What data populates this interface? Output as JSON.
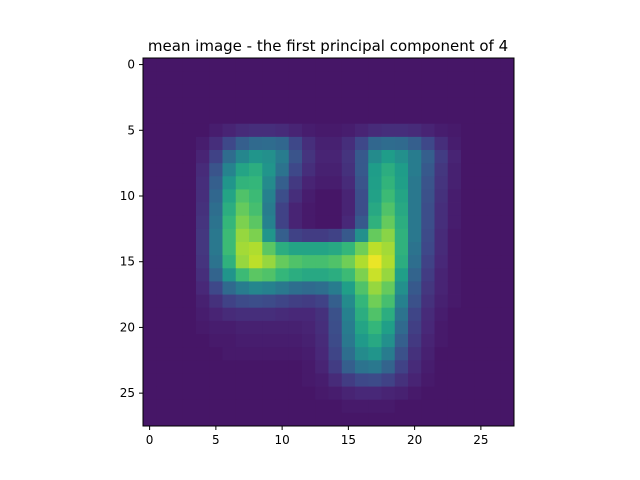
{
  "chart_data": {
    "type": "heatmap",
    "title": "mean image - the first principal component of 4",
    "xlabel": "",
    "ylabel": "",
    "rows": 28,
    "cols": 28,
    "xlim": [
      -0.5,
      27.5
    ],
    "ylim": [
      27.5,
      -0.5
    ],
    "xticks": [
      0,
      5,
      10,
      15,
      20,
      25
    ],
    "yticks": [
      0,
      5,
      10,
      15,
      20,
      25
    ],
    "colormap": "viridis",
    "colormap_stops": [
      "#440154",
      "#482878",
      "#3e4989",
      "#31688e",
      "#26828e",
      "#1f9e89",
      "#35b779",
      "#6ece58",
      "#b5de2b",
      "#fde725"
    ],
    "value_range": [
      0,
      1
    ],
    "grid": false,
    "values": [
      [
        0.06,
        0.06,
        0.06,
        0.06,
        0.06,
        0.06,
        0.06,
        0.06,
        0.06,
        0.06,
        0.06,
        0.06,
        0.06,
        0.06,
        0.06,
        0.06,
        0.06,
        0.06,
        0.06,
        0.06,
        0.06,
        0.06,
        0.06,
        0.06,
        0.06,
        0.06,
        0.06,
        0.06
      ],
      [
        0.06,
        0.06,
        0.06,
        0.06,
        0.06,
        0.06,
        0.06,
        0.06,
        0.06,
        0.06,
        0.06,
        0.06,
        0.06,
        0.06,
        0.06,
        0.06,
        0.06,
        0.06,
        0.06,
        0.06,
        0.06,
        0.06,
        0.06,
        0.06,
        0.06,
        0.06,
        0.06,
        0.06
      ],
      [
        0.06,
        0.06,
        0.06,
        0.06,
        0.06,
        0.06,
        0.06,
        0.06,
        0.06,
        0.06,
        0.06,
        0.06,
        0.06,
        0.06,
        0.06,
        0.06,
        0.06,
        0.06,
        0.06,
        0.06,
        0.06,
        0.06,
        0.06,
        0.06,
        0.06,
        0.06,
        0.06,
        0.06
      ],
      [
        0.06,
        0.06,
        0.06,
        0.06,
        0.06,
        0.06,
        0.06,
        0.06,
        0.06,
        0.06,
        0.06,
        0.06,
        0.06,
        0.06,
        0.06,
        0.06,
        0.06,
        0.06,
        0.06,
        0.06,
        0.06,
        0.06,
        0.06,
        0.06,
        0.06,
        0.06,
        0.06,
        0.06
      ],
      [
        0.06,
        0.06,
        0.06,
        0.06,
        0.06,
        0.06,
        0.06,
        0.06,
        0.06,
        0.06,
        0.06,
        0.06,
        0.06,
        0.06,
        0.06,
        0.06,
        0.06,
        0.06,
        0.06,
        0.06,
        0.06,
        0.06,
        0.06,
        0.06,
        0.06,
        0.06,
        0.06,
        0.06
      ],
      [
        0.06,
        0.06,
        0.06,
        0.06,
        0.06,
        0.08,
        0.1,
        0.12,
        0.13,
        0.13,
        0.12,
        0.1,
        0.08,
        0.07,
        0.07,
        0.08,
        0.1,
        0.12,
        0.13,
        0.13,
        0.12,
        0.1,
        0.08,
        0.07,
        0.06,
        0.06,
        0.06,
        0.06
      ],
      [
        0.06,
        0.06,
        0.06,
        0.06,
        0.08,
        0.13,
        0.22,
        0.3,
        0.34,
        0.35,
        0.33,
        0.22,
        0.13,
        0.09,
        0.09,
        0.13,
        0.22,
        0.33,
        0.35,
        0.34,
        0.3,
        0.22,
        0.13,
        0.08,
        0.06,
        0.06,
        0.06,
        0.06
      ],
      [
        0.06,
        0.06,
        0.06,
        0.06,
        0.1,
        0.2,
        0.35,
        0.46,
        0.52,
        0.5,
        0.42,
        0.26,
        0.15,
        0.1,
        0.1,
        0.15,
        0.28,
        0.48,
        0.55,
        0.5,
        0.42,
        0.3,
        0.18,
        0.1,
        0.06,
        0.06,
        0.06,
        0.06
      ],
      [
        0.06,
        0.06,
        0.06,
        0.06,
        0.12,
        0.26,
        0.45,
        0.58,
        0.62,
        0.52,
        0.38,
        0.22,
        0.13,
        0.09,
        0.09,
        0.14,
        0.28,
        0.55,
        0.62,
        0.55,
        0.42,
        0.28,
        0.16,
        0.09,
        0.06,
        0.06,
        0.06,
        0.06
      ],
      [
        0.06,
        0.06,
        0.06,
        0.06,
        0.13,
        0.3,
        0.52,
        0.65,
        0.66,
        0.48,
        0.3,
        0.17,
        0.1,
        0.08,
        0.08,
        0.12,
        0.26,
        0.56,
        0.65,
        0.56,
        0.4,
        0.26,
        0.15,
        0.09,
        0.06,
        0.06,
        0.06,
        0.06
      ],
      [
        0.06,
        0.06,
        0.06,
        0.06,
        0.13,
        0.33,
        0.58,
        0.72,
        0.68,
        0.44,
        0.24,
        0.13,
        0.08,
        0.06,
        0.06,
        0.1,
        0.24,
        0.57,
        0.68,
        0.58,
        0.4,
        0.25,
        0.14,
        0.08,
        0.06,
        0.06,
        0.06,
        0.06
      ],
      [
        0.06,
        0.06,
        0.06,
        0.06,
        0.14,
        0.36,
        0.62,
        0.76,
        0.7,
        0.42,
        0.2,
        0.1,
        0.07,
        0.06,
        0.06,
        0.1,
        0.24,
        0.6,
        0.72,
        0.6,
        0.4,
        0.24,
        0.13,
        0.08,
        0.06,
        0.06,
        0.06,
        0.06
      ],
      [
        0.06,
        0.06,
        0.06,
        0.06,
        0.15,
        0.38,
        0.66,
        0.8,
        0.74,
        0.44,
        0.2,
        0.1,
        0.07,
        0.06,
        0.06,
        0.11,
        0.28,
        0.64,
        0.76,
        0.62,
        0.4,
        0.24,
        0.13,
        0.08,
        0.06,
        0.06,
        0.06,
        0.06
      ],
      [
        0.06,
        0.06,
        0.06,
        0.06,
        0.16,
        0.4,
        0.68,
        0.84,
        0.8,
        0.52,
        0.3,
        0.2,
        0.18,
        0.18,
        0.2,
        0.28,
        0.5,
        0.76,
        0.82,
        0.64,
        0.4,
        0.23,
        0.12,
        0.07,
        0.06,
        0.06,
        0.06,
        0.06
      ],
      [
        0.06,
        0.06,
        0.06,
        0.06,
        0.16,
        0.4,
        0.68,
        0.86,
        0.88,
        0.74,
        0.62,
        0.58,
        0.58,
        0.58,
        0.6,
        0.66,
        0.78,
        0.9,
        0.86,
        0.64,
        0.38,
        0.22,
        0.12,
        0.07,
        0.06,
        0.06,
        0.06,
        0.06
      ],
      [
        0.06,
        0.06,
        0.06,
        0.06,
        0.15,
        0.38,
        0.64,
        0.84,
        0.9,
        0.84,
        0.76,
        0.72,
        0.7,
        0.7,
        0.72,
        0.78,
        0.88,
        0.97,
        0.88,
        0.62,
        0.36,
        0.2,
        0.11,
        0.07,
        0.06,
        0.06,
        0.06,
        0.06
      ],
      [
        0.06,
        0.06,
        0.06,
        0.06,
        0.13,
        0.32,
        0.52,
        0.68,
        0.74,
        0.72,
        0.66,
        0.62,
        0.6,
        0.6,
        0.62,
        0.68,
        0.8,
        0.92,
        0.84,
        0.56,
        0.32,
        0.18,
        0.1,
        0.07,
        0.06,
        0.06,
        0.06,
        0.06
      ],
      [
        0.06,
        0.06,
        0.06,
        0.06,
        0.11,
        0.22,
        0.34,
        0.42,
        0.46,
        0.44,
        0.4,
        0.36,
        0.34,
        0.36,
        0.42,
        0.56,
        0.72,
        0.84,
        0.76,
        0.5,
        0.28,
        0.16,
        0.1,
        0.07,
        0.06,
        0.06,
        0.06,
        0.06
      ],
      [
        0.06,
        0.06,
        0.06,
        0.06,
        0.09,
        0.14,
        0.2,
        0.23,
        0.24,
        0.23,
        0.21,
        0.19,
        0.18,
        0.2,
        0.3,
        0.48,
        0.66,
        0.78,
        0.7,
        0.44,
        0.25,
        0.14,
        0.09,
        0.07,
        0.06,
        0.06,
        0.06,
        0.06
      ],
      [
        0.06,
        0.06,
        0.06,
        0.06,
        0.08,
        0.1,
        0.12,
        0.13,
        0.13,
        0.13,
        0.12,
        0.11,
        0.11,
        0.14,
        0.25,
        0.44,
        0.62,
        0.72,
        0.62,
        0.38,
        0.21,
        0.12,
        0.08,
        0.06,
        0.06,
        0.06,
        0.06,
        0.06
      ],
      [
        0.06,
        0.06,
        0.06,
        0.06,
        0.07,
        0.08,
        0.08,
        0.09,
        0.09,
        0.09,
        0.09,
        0.09,
        0.1,
        0.13,
        0.24,
        0.42,
        0.58,
        0.66,
        0.56,
        0.34,
        0.19,
        0.11,
        0.07,
        0.06,
        0.06,
        0.06,
        0.06,
        0.06
      ],
      [
        0.06,
        0.06,
        0.06,
        0.06,
        0.06,
        0.07,
        0.07,
        0.08,
        0.08,
        0.08,
        0.08,
        0.08,
        0.09,
        0.12,
        0.23,
        0.4,
        0.54,
        0.6,
        0.5,
        0.3,
        0.17,
        0.1,
        0.07,
        0.06,
        0.06,
        0.06,
        0.06,
        0.06
      ],
      [
        0.06,
        0.06,
        0.06,
        0.06,
        0.06,
        0.06,
        0.07,
        0.07,
        0.07,
        0.07,
        0.07,
        0.07,
        0.08,
        0.11,
        0.21,
        0.36,
        0.48,
        0.52,
        0.42,
        0.25,
        0.14,
        0.09,
        0.06,
        0.06,
        0.06,
        0.06,
        0.06,
        0.06
      ],
      [
        0.06,
        0.06,
        0.06,
        0.06,
        0.06,
        0.06,
        0.06,
        0.06,
        0.06,
        0.06,
        0.06,
        0.06,
        0.07,
        0.1,
        0.18,
        0.3,
        0.38,
        0.4,
        0.32,
        0.2,
        0.12,
        0.08,
        0.06,
        0.06,
        0.06,
        0.06,
        0.06,
        0.06
      ],
      [
        0.06,
        0.06,
        0.06,
        0.06,
        0.06,
        0.06,
        0.06,
        0.06,
        0.06,
        0.06,
        0.06,
        0.06,
        0.07,
        0.08,
        0.12,
        0.18,
        0.22,
        0.23,
        0.2,
        0.14,
        0.1,
        0.07,
        0.06,
        0.06,
        0.06,
        0.06,
        0.06,
        0.06
      ],
      [
        0.06,
        0.06,
        0.06,
        0.06,
        0.06,
        0.06,
        0.06,
        0.06,
        0.06,
        0.06,
        0.06,
        0.06,
        0.06,
        0.07,
        0.08,
        0.1,
        0.11,
        0.11,
        0.1,
        0.09,
        0.07,
        0.06,
        0.06,
        0.06,
        0.06,
        0.06,
        0.06,
        0.06
      ],
      [
        0.06,
        0.06,
        0.06,
        0.06,
        0.06,
        0.06,
        0.06,
        0.06,
        0.06,
        0.06,
        0.06,
        0.06,
        0.06,
        0.06,
        0.06,
        0.07,
        0.07,
        0.07,
        0.07,
        0.06,
        0.06,
        0.06,
        0.06,
        0.06,
        0.06,
        0.06,
        0.06,
        0.06
      ],
      [
        0.06,
        0.06,
        0.06,
        0.06,
        0.06,
        0.06,
        0.06,
        0.06,
        0.06,
        0.06,
        0.06,
        0.06,
        0.06,
        0.06,
        0.06,
        0.06,
        0.06,
        0.06,
        0.06,
        0.06,
        0.06,
        0.06,
        0.06,
        0.06,
        0.06,
        0.06,
        0.06,
        0.06
      ]
    ]
  }
}
